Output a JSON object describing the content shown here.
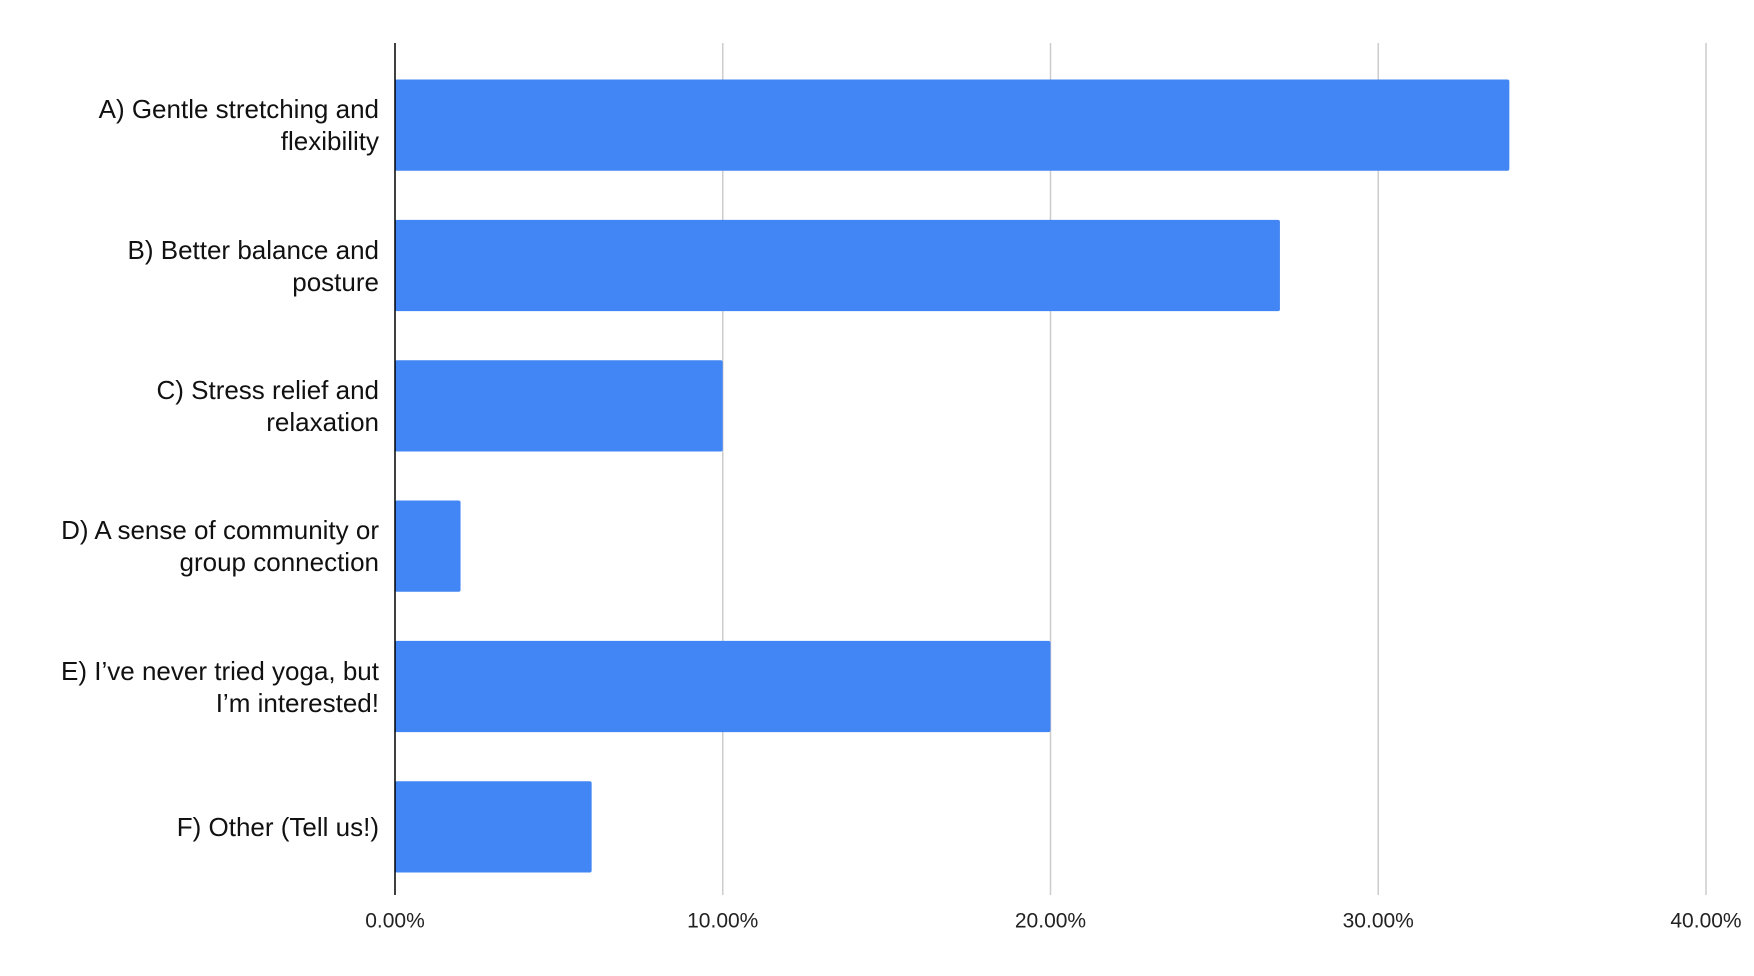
{
  "chart_data": {
    "type": "bar",
    "orientation": "horizontal",
    "categories": [
      "A) Gentle stretching and flexibility",
      "B) Better balance and posture",
      "C) Stress relief and relaxation",
      "D) A sense of community or group connection",
      "E) I’ve never tried yoga, but I’m interested!",
      "F) Other (Tell us!)"
    ],
    "values": [
      34,
      27,
      10,
      2,
      20,
      6
    ],
    "color": "#4285f4",
    "xlim": [
      0,
      40
    ],
    "xticks": [
      {
        "value": 0,
        "label": "0.00%"
      },
      {
        "value": 10,
        "label": "10.00%"
      },
      {
        "value": 20,
        "label": "20.00%"
      },
      {
        "value": 30,
        "label": "30.00%"
      },
      {
        "value": 40,
        "label": "40.00%"
      }
    ],
    "grid": true
  }
}
